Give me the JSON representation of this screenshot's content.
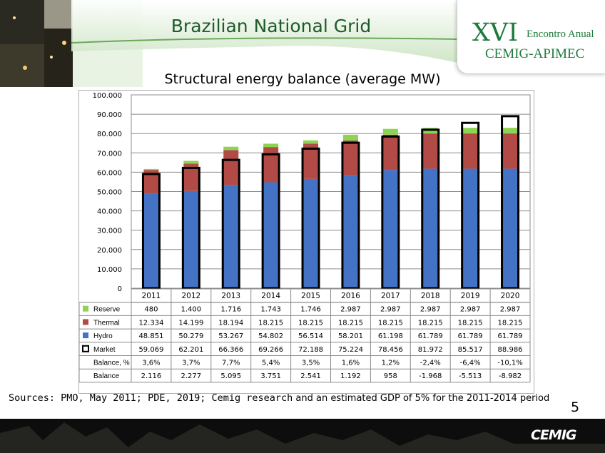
{
  "header": {
    "title": "Brazilian National Grid",
    "event_number": "XVI",
    "event_name": "Encontro Anual",
    "event_org": "CEMIG-APIMEC"
  },
  "chart_data": {
    "type": "bar",
    "title": "Structural energy balance (average MW)",
    "categories": [
      "2011",
      "2012",
      "2013",
      "2014",
      "2015",
      "2016",
      "2017",
      "2018",
      "2019",
      "2020"
    ],
    "ylim": [
      0,
      100000
    ],
    "y_ticks": [
      "0",
      "10.000",
      "20.000",
      "30.000",
      "40.000",
      "50.000",
      "60.000",
      "70.000",
      "80.000",
      "90.000",
      "100.000"
    ],
    "series": [
      {
        "name": "Reserve",
        "color": "#8ed454",
        "stacked": true,
        "values": [
          480,
          1400,
          1716,
          1743,
          1746,
          2987,
          2987,
          2987,
          2987,
          2987
        ],
        "labels": [
          "480",
          "1.400",
          "1.716",
          "1.743",
          "1.746",
          "2.987",
          "2.987",
          "2.987",
          "2.987",
          "2.987"
        ]
      },
      {
        "name": "Thermal",
        "color": "#b24a45",
        "stacked": true,
        "values": [
          12334,
          14199,
          18194,
          18215,
          18215,
          18215,
          18215,
          18215,
          18215,
          18215
        ],
        "labels": [
          "12.334",
          "14.199",
          "18.194",
          "18.215",
          "18.215",
          "18.215",
          "18.215",
          "18.215",
          "18.215",
          "18.215"
        ]
      },
      {
        "name": "Hydro",
        "color": "#4472c4",
        "stacked": true,
        "values": [
          48851,
          50279,
          53267,
          54802,
          56514,
          58201,
          61198,
          61789,
          61789,
          61789
        ],
        "labels": [
          "48.851",
          "50.279",
          "53.267",
          "54.802",
          "56.514",
          "58.201",
          "61.198",
          "61.789",
          "61.789",
          "61.789"
        ]
      },
      {
        "name": "Market",
        "color": "#000000",
        "style": "outline",
        "values": [
          59069,
          62201,
          66366,
          69266,
          72188,
          75224,
          78456,
          81972,
          85517,
          88986
        ],
        "labels": [
          "59.069",
          "62.201",
          "66.366",
          "69.266",
          "72.188",
          "75.224",
          "78.456",
          "81.972",
          "85.517",
          "88.986"
        ]
      }
    ],
    "table_rows": [
      {
        "name": "Balance, %",
        "labels": [
          "3,6%",
          "3,7%",
          "7,7%",
          "5,4%",
          "3,5%",
          "1,6%",
          "1,2%",
          "-2,4%",
          "-6,4%",
          "-10,1%"
        ]
      },
      {
        "name": "Balance",
        "labels": [
          "2.116",
          "2.277",
          "5.095",
          "3.751",
          "2.541",
          "1.192",
          "958",
          "-1.968",
          "-5.513",
          "-8.982"
        ]
      }
    ],
    "grid": true
  },
  "footer": {
    "sources_mono": "Sources: PMO, May 2011; PDE, 2019; Cemig research",
    "sources_sans": " and an estimated GDP of 5% for the 2011-2014 period",
    "page_number": "5",
    "brand": "CEMIG"
  }
}
